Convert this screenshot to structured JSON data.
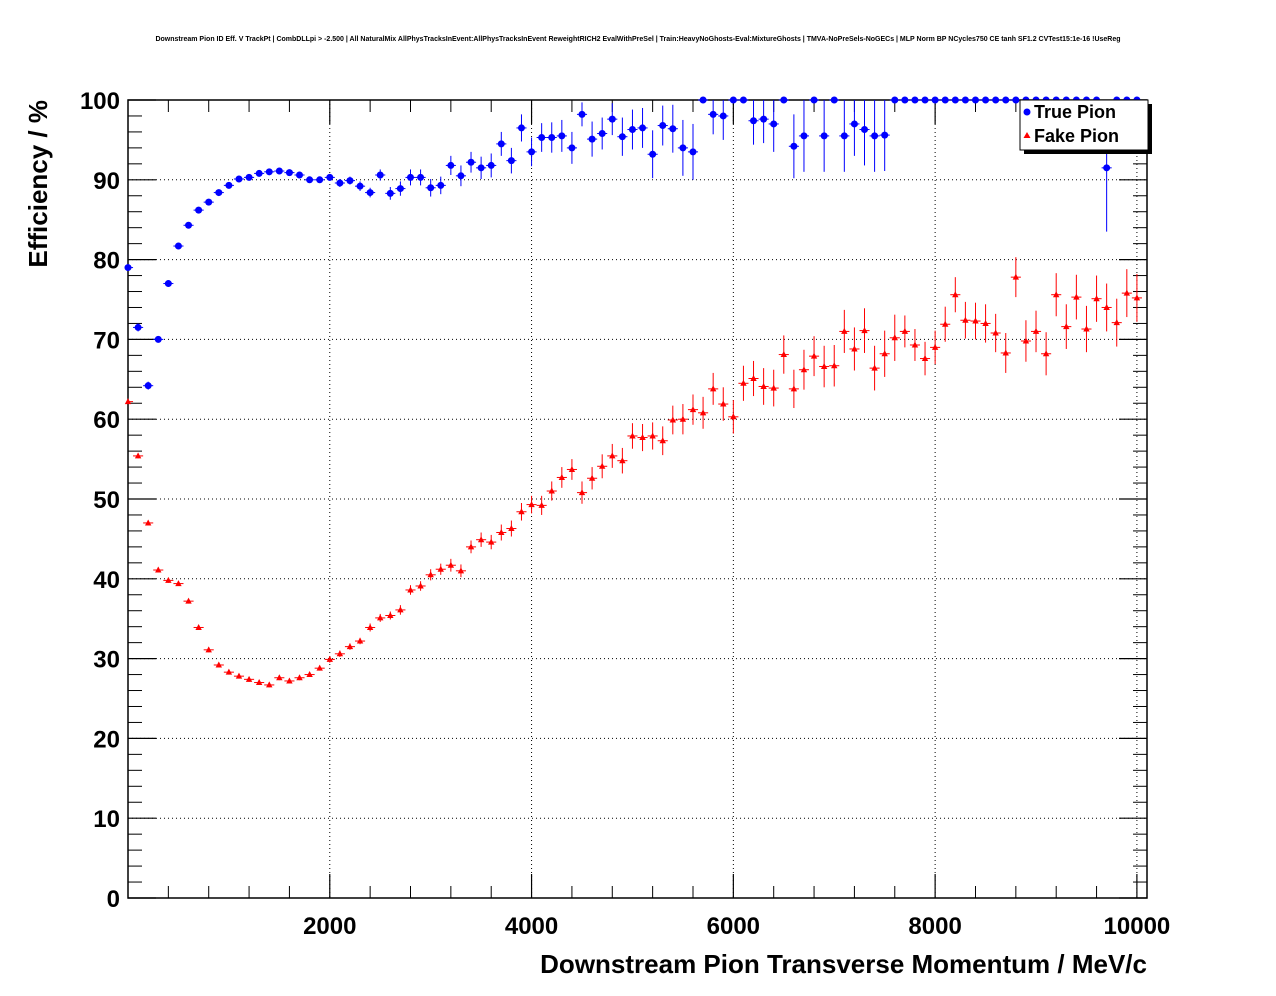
{
  "title": "Downstream Pion ID Eff. V TrackPt | CombDLLpi > -2.500 | All NaturalMix AllPhysTracksInEvent:AllPhysTracksInEvent ReweightRICH2 EvalWithPreSel | Train:HeavyNoGhosts-Eval:MixtureGhosts | TMVA-NoPreSels-NoGECs | MLP Norm BP NCycles750 CE tanh SF1.2 CVTest15:1e-16 !UseReg",
  "chart_data": {
    "type": "scatter",
    "xlabel": "Downstream Pion Transverse Momentum / MeV/c",
    "ylabel": "Efficiency / %",
    "xlim": [
      0,
      10100
    ],
    "ylim": [
      0,
      100
    ],
    "x_ticks": [
      2000,
      4000,
      6000,
      8000,
      10000
    ],
    "y_ticks": [
      0,
      10,
      20,
      30,
      40,
      50,
      60,
      70,
      80,
      90,
      100
    ],
    "grid": true,
    "legend_position": "top-right",
    "series": [
      {
        "name": "True Pion",
        "color": "#0000ff",
        "marker": "circle",
        "x": [
          0,
          100,
          200,
          300,
          400,
          500,
          600,
          700,
          800,
          900,
          1000,
          1100,
          1200,
          1300,
          1400,
          1500,
          1600,
          1700,
          1800,
          1900,
          2000,
          2100,
          2200,
          2300,
          2400,
          2500,
          2600,
          2700,
          2800,
          2900,
          3000,
          3100,
          3200,
          3300,
          3400,
          3500,
          3600,
          3700,
          3800,
          3900,
          4000,
          4100,
          4200,
          4300,
          4400,
          4500,
          4600,
          4700,
          4800,
          4900,
          5000,
          5100,
          5200,
          5300,
          5400,
          5500,
          5600,
          5700,
          5800,
          5900,
          6000,
          6100,
          6200,
          6300,
          6400,
          6500,
          6600,
          6700,
          6800,
          6900,
          7000,
          7100,
          7200,
          7300,
          7400,
          7500,
          7600,
          7700,
          7800,
          7900,
          8000,
          8100,
          8200,
          8300,
          8400,
          8500,
          8600,
          8700,
          8800,
          8900,
          9000,
          9100,
          9200,
          9300,
          9400,
          9500,
          9600,
          9700,
          9800,
          9900,
          10000
        ],
        "y": [
          79.0,
          71.5,
          64.2,
          70.0,
          77.0,
          81.7,
          84.3,
          86.2,
          87.2,
          88.4,
          89.3,
          90.1,
          90.3,
          90.8,
          91.0,
          91.1,
          90.9,
          90.6,
          90.0,
          90.0,
          90.3,
          89.6,
          89.9,
          89.2,
          88.4,
          90.6,
          88.3,
          88.9,
          90.3,
          90.3,
          89.0,
          89.3,
          91.8,
          90.5,
          92.2,
          91.5,
          91.8,
          94.5,
          92.4,
          96.5,
          93.5,
          95.3,
          95.3,
          95.5,
          94.0,
          98.2,
          95.1,
          95.8,
          97.6,
          95.4,
          96.3,
          96.5,
          93.2,
          96.8,
          96.4,
          94.0,
          93.5,
          100,
          98.2,
          98.0,
          100,
          100,
          97.4,
          97.6,
          97.0,
          100,
          94.2,
          95.5,
          100,
          95.5,
          100,
          95.5,
          97.0,
          96.3,
          95.5,
          95.6,
          100,
          100,
          100,
          100,
          100,
          100,
          100,
          100,
          100,
          100,
          100,
          100,
          100,
          100,
          100,
          100,
          100,
          100,
          100,
          100,
          100,
          91.5,
          100,
          100,
          100
        ],
        "yerr": [
          0.4,
          0.5,
          0.5,
          0.4,
          0.4,
          0.4,
          0.4,
          0.4,
          0.4,
          0.4,
          0.4,
          0.4,
          0.4,
          0.4,
          0.4,
          0.4,
          0.4,
          0.4,
          0.4,
          0.4,
          0.4,
          0.5,
          0.5,
          0.6,
          0.6,
          0.7,
          0.8,
          0.9,
          1.0,
          1.0,
          1.1,
          1.1,
          1.2,
          1.3,
          1.3,
          1.4,
          1.5,
          1.5,
          1.6,
          1.7,
          1.8,
          1.8,
          1.9,
          2.0,
          2.0,
          1.5,
          2.2,
          2.0,
          2.0,
          2.4,
          2.5,
          2.5,
          3.0,
          2.5,
          3.0,
          3.5,
          3.5,
          0,
          2.5,
          3.0,
          0,
          0,
          3.0,
          3.0,
          3.5,
          0,
          4.0,
          4.5,
          0,
          4.5,
          0,
          4.5,
          4.0,
          4.5,
          4.5,
          4.5,
          0,
          0,
          0,
          0,
          0,
          0,
          0,
          0,
          0,
          0,
          0,
          0,
          0,
          0,
          0,
          0,
          0,
          0,
          0,
          0,
          0,
          8.0,
          0,
          0,
          0
        ]
      },
      {
        "name": "Fake Pion",
        "color": "#ff0000",
        "marker": "triangle",
        "x": [
          0,
          100,
          200,
          300,
          400,
          500,
          600,
          700,
          800,
          900,
          1000,
          1100,
          1200,
          1300,
          1400,
          1500,
          1600,
          1700,
          1800,
          1900,
          2000,
          2100,
          2200,
          2300,
          2400,
          2500,
          2600,
          2700,
          2800,
          2900,
          3000,
          3100,
          3200,
          3300,
          3400,
          3500,
          3600,
          3700,
          3800,
          3900,
          4000,
          4100,
          4200,
          4300,
          4400,
          4500,
          4600,
          4700,
          4800,
          4900,
          5000,
          5100,
          5200,
          5300,
          5400,
          5500,
          5600,
          5700,
          5800,
          5900,
          6000,
          6100,
          6200,
          6300,
          6400,
          6500,
          6600,
          6700,
          6800,
          6900,
          7000,
          7100,
          7200,
          7300,
          7400,
          7500,
          7600,
          7700,
          7800,
          7900,
          8000,
          8100,
          8200,
          8300,
          8400,
          8500,
          8600,
          8700,
          8800,
          8900,
          9000,
          9100,
          9200,
          9300,
          9400,
          9500,
          9600,
          9700,
          9800,
          9900,
          10000
        ],
        "y": [
          62.2,
          55.4,
          47.0,
          41.1,
          39.8,
          39.4,
          37.2,
          33.9,
          31.1,
          29.2,
          28.3,
          27.8,
          27.4,
          27.0,
          26.7,
          27.6,
          27.2,
          27.6,
          28.0,
          28.8,
          29.9,
          30.6,
          31.5,
          32.2,
          33.9,
          35.1,
          35.4,
          36.1,
          38.6,
          39.1,
          40.5,
          41.2,
          41.7,
          41.0,
          44.0,
          44.9,
          44.6,
          45.8,
          46.3,
          48.4,
          49.3,
          49.2,
          51.0,
          52.7,
          53.7,
          50.8,
          52.6,
          54.1,
          55.4,
          54.8,
          57.9,
          57.7,
          57.9,
          57.3,
          59.9,
          60.0,
          61.2,
          60.8,
          63.8,
          61.9,
          60.3,
          64.5,
          65.1,
          64.1,
          63.9,
          68.1,
          63.8,
          66.2,
          67.9,
          66.6,
          66.7,
          71.0,
          68.8,
          71.1,
          66.4,
          68.2,
          70.2,
          71.0,
          69.3,
          67.6,
          69.0,
          71.9,
          75.6,
          72.4,
          72.3,
          72.0,
          70.8,
          68.3,
          77.8,
          69.8,
          71.0,
          68.2,
          75.6,
          71.6,
          75.3,
          71.3,
          75.1,
          74.0,
          72.1,
          75.8,
          75.2
        ],
        "yerr": [
          0.3,
          0.3,
          0.3,
          0.3,
          0.3,
          0.3,
          0.3,
          0.3,
          0.3,
          0.3,
          0.3,
          0.3,
          0.3,
          0.3,
          0.3,
          0.3,
          0.3,
          0.3,
          0.3,
          0.3,
          0.4,
          0.4,
          0.4,
          0.4,
          0.5,
          0.5,
          0.5,
          0.6,
          0.6,
          0.6,
          0.7,
          0.7,
          0.8,
          0.8,
          0.8,
          0.9,
          0.9,
          1.0,
          1.0,
          1.1,
          1.1,
          1.2,
          1.2,
          1.3,
          1.3,
          1.4,
          1.4,
          1.5,
          1.5,
          1.6,
          1.6,
          1.7,
          1.7,
          1.8,
          1.8,
          1.9,
          1.9,
          2.0,
          2.0,
          2.1,
          2.1,
          2.2,
          2.2,
          2.3,
          2.3,
          2.4,
          2.4,
          2.5,
          2.5,
          2.6,
          2.6,
          2.7,
          2.7,
          2.8,
          2.8,
          2.9,
          2.9,
          2.0,
          2.0,
          2.1,
          2.1,
          2.2,
          2.2,
          2.3,
          2.3,
          2.4,
          2.4,
          2.5,
          2.5,
          2.6,
          2.6,
          2.7,
          2.7,
          2.8,
          2.8,
          2.9,
          2.9,
          3.0,
          3.0,
          3.0,
          3.0
        ]
      }
    ]
  }
}
